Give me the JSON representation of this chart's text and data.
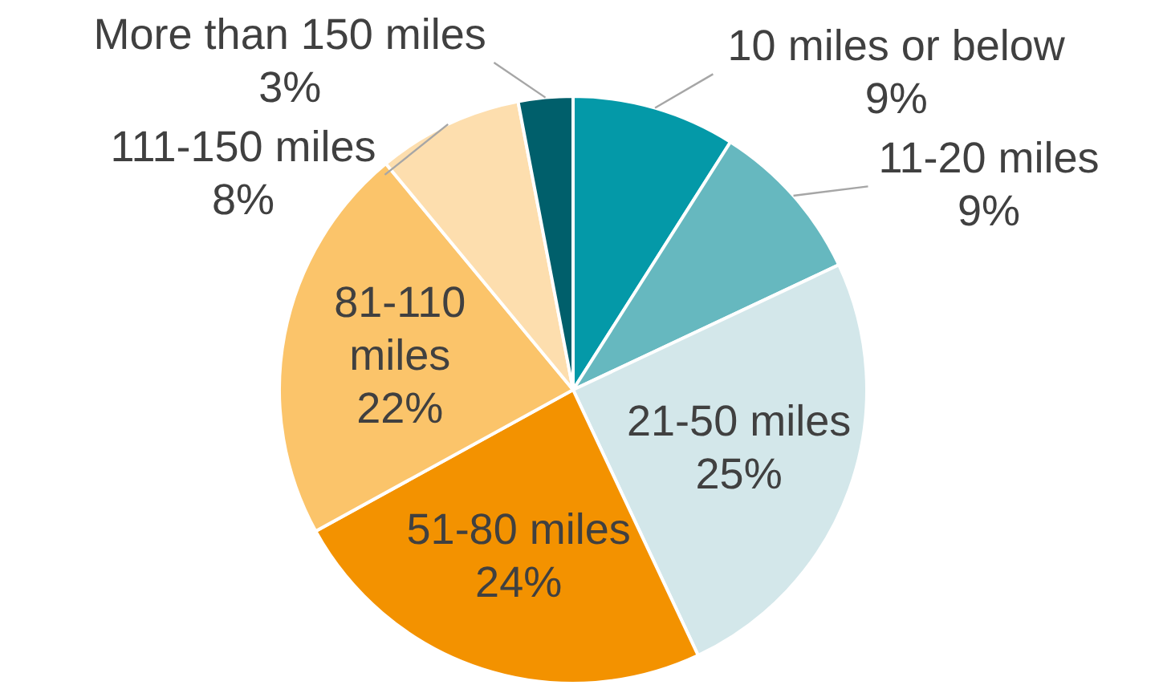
{
  "chart_data": {
    "type": "pie",
    "categories": [
      "10 miles or below",
      "11-20 miles",
      "21-50 miles",
      "51-80 miles",
      "81-110 miles",
      "111-150 miles",
      "More than 150 miles"
    ],
    "values": [
      9,
      9,
      25,
      24,
      22,
      8,
      3
    ],
    "value_labels": [
      "9%",
      "9%",
      "25%",
      "24%",
      "22%",
      "8%",
      "3%"
    ],
    "colors": [
      "#0499a8",
      "#66b8bf",
      "#d3e7ea",
      "#f39200",
      "#fbc46a",
      "#fddeae",
      "#005f6b"
    ]
  }
}
